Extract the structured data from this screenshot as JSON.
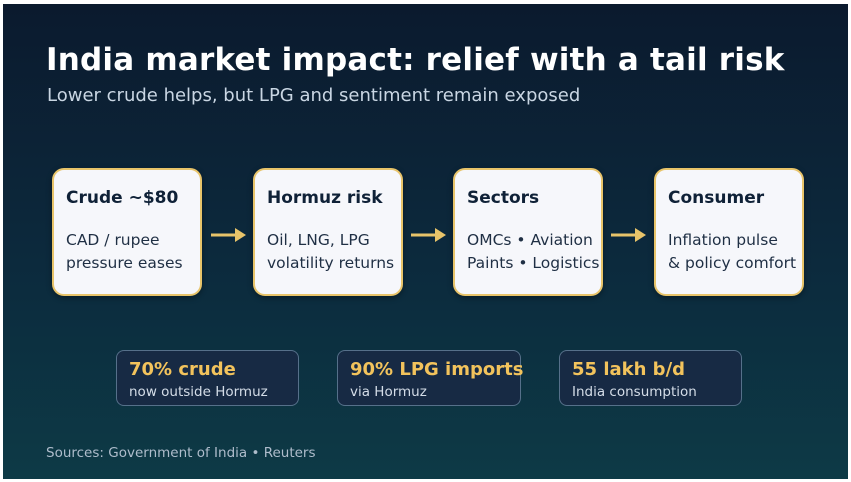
{
  "title": "India market impact: relief with a tail risk",
  "subtitle": "Lower crude helps, but LPG and sentiment remain exposed",
  "flow": [
    {
      "title": "Crude ~$80",
      "line1": "CAD / rupee",
      "line2": "pressure eases"
    },
    {
      "title": "Hormuz risk",
      "line1": "Oil, LNG, LPG",
      "line2": "volatility returns"
    },
    {
      "title": "Sectors",
      "line1": "OMCs • Aviation",
      "line2": "Paints • Logistics"
    },
    {
      "title": "Consumer",
      "line1": "Inflation pulse",
      "line2": "& policy comfort"
    }
  ],
  "stats": [
    {
      "value": "70% crude",
      "label": "now outside Hormuz"
    },
    {
      "value": "90% LPG imports",
      "label": "via Hormuz"
    },
    {
      "value": "55 lakh b/d",
      "label": "India consumption"
    }
  ],
  "sources": "Sources: Government of India • Reuters",
  "colors": {
    "background_top": "#0b1a2e",
    "background_bottom": "#0d3a46",
    "accent": "#e8c46a",
    "card_fill": "#f6f7fb",
    "stat_value": "#f2c35c",
    "stat_fill": "#172a44"
  },
  "icons": {
    "connector": "right-arrow-icon"
  }
}
